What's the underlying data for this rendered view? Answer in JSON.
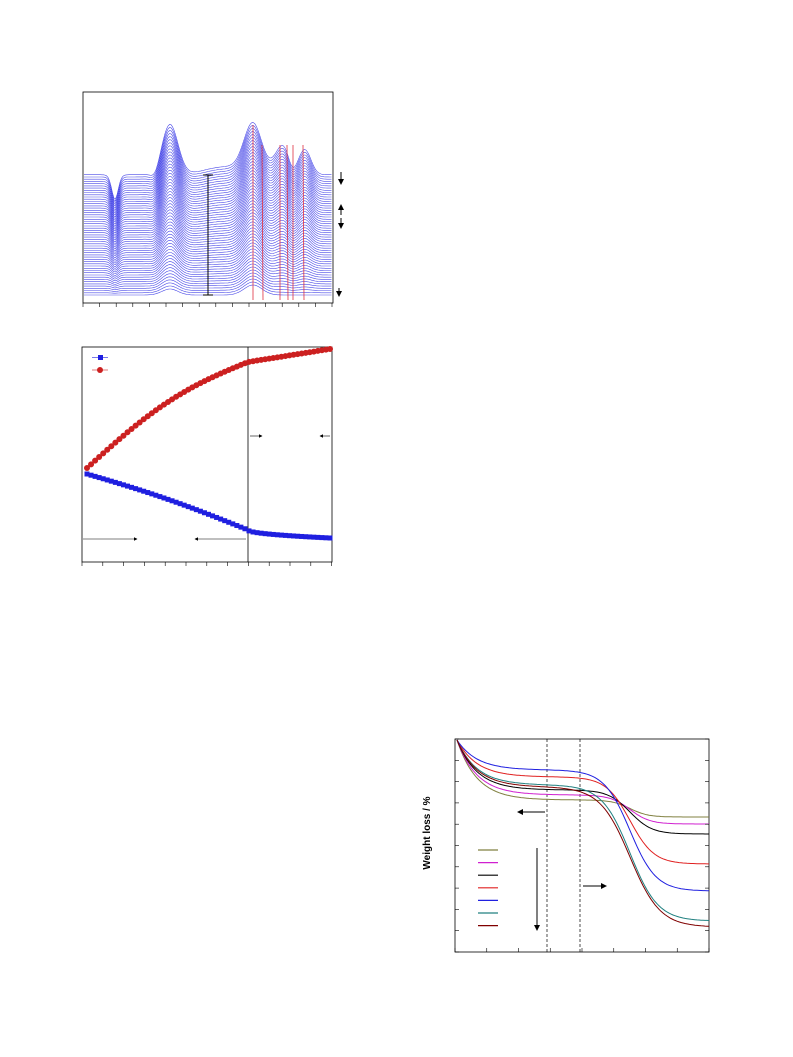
{
  "figure_tga": {
    "y_axis_label": "Weight loss / %"
  }
}
